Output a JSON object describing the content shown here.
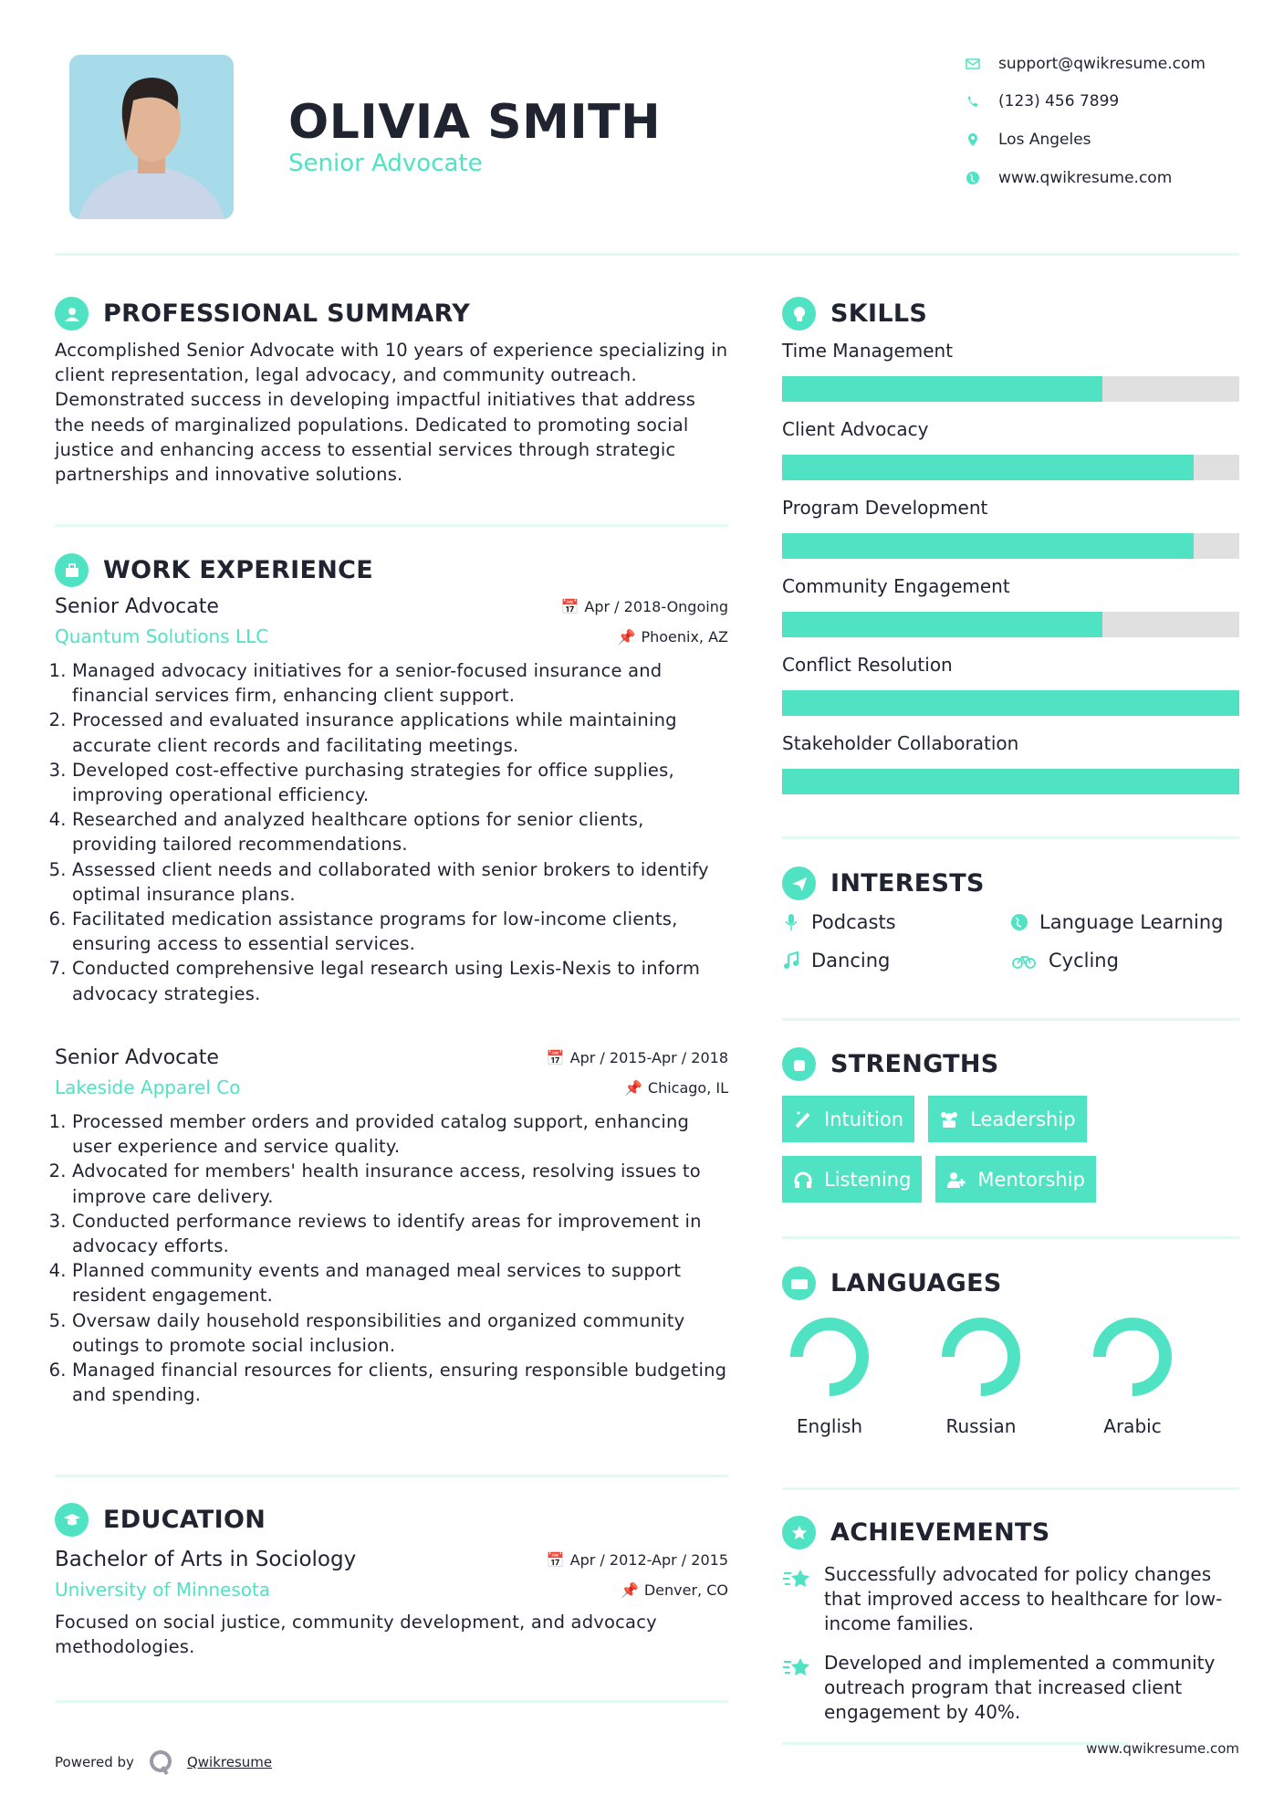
{
  "header": {
    "name": "OLIVIA SMITH",
    "title": "Senior Advocate",
    "contacts": [
      {
        "icon": "envelope-icon",
        "text": "support@qwikresume.com"
      },
      {
        "icon": "phone-icon",
        "text": "(123) 456 7899"
      },
      {
        "icon": "map-marker-icon",
        "text": "Los Angeles"
      },
      {
        "icon": "globe-icon",
        "text": "www.qwikresume.com"
      }
    ]
  },
  "summary": {
    "heading": "PROFESSIONAL SUMMARY",
    "text": "Accomplished Senior Advocate with 10 years of experience specializing in client representation, legal advocacy, and community outreach. Demonstrated success in developing impactful initiatives that address the needs of marginalized populations. Dedicated to promoting social justice and enhancing access to essential services through strategic partnerships and innovative solutions."
  },
  "work": {
    "heading": "WORK EXPERIENCE",
    "jobs": [
      {
        "title": "Senior Advocate",
        "dates": "Apr / 2018-Ongoing",
        "company": "Quantum Solutions LLC",
        "location": "Phoenix, AZ",
        "bullets": [
          "Managed advocacy initiatives for a senior-focused insurance and financial services firm, enhancing client support.",
          "Processed and evaluated insurance applications while maintaining accurate client records and facilitating meetings.",
          "Developed cost-effective purchasing strategies for office supplies, improving operational efficiency.",
          "Researched and analyzed healthcare options for senior clients, providing tailored recommendations.",
          "Assessed client needs and collaborated with senior brokers to identify optimal insurance plans.",
          "Facilitated medication assistance programs for low-income clients, ensuring access to essential services.",
          "Conducted comprehensive legal research using Lexis-Nexis to inform advocacy strategies."
        ]
      },
      {
        "title": "Senior Advocate",
        "dates": "Apr / 2015-Apr / 2018",
        "company": "Lakeside Apparel Co",
        "location": "Chicago, IL",
        "bullets": [
          "Processed member orders and provided catalog support, enhancing user experience and service quality.",
          "Advocated for members' health insurance access, resolving issues to improve care delivery.",
          "Conducted performance reviews to identify areas for improvement in advocacy efforts.",
          "Planned community events and managed meal services to support resident engagement.",
          "Oversaw daily household responsibilities and organized community outings to promote social inclusion.",
          "Managed financial resources for clients, ensuring responsible budgeting and spending."
        ]
      }
    ]
  },
  "education": {
    "heading": "EDUCATION",
    "degree": "Bachelor of Arts in Sociology",
    "dates": "Apr / 2012-Apr / 2015",
    "school": "University of Minnesota",
    "location": "Denver, CO",
    "text": "Focused on social justice, community development, and advocacy methodologies."
  },
  "skills": {
    "heading": "SKILLS",
    "items": [
      {
        "name": "Time Management",
        "level": 70
      },
      {
        "name": "Client Advocacy",
        "level": 90
      },
      {
        "name": "Program Development",
        "level": 90
      },
      {
        "name": "Community Engagement",
        "level": 70
      },
      {
        "name": "Conflict Resolution",
        "level": 100
      },
      {
        "name": "Stakeholder Collaboration",
        "level": 100
      }
    ]
  },
  "interests": {
    "heading": "INTERESTS",
    "items": [
      {
        "icon": "microphone-icon",
        "label": "Podcasts"
      },
      {
        "icon": "globe-icon",
        "label": "Language Learning"
      },
      {
        "icon": "music-icon",
        "label": "Dancing"
      },
      {
        "icon": "bicycle-icon",
        "label": "Cycling"
      }
    ]
  },
  "strengths": {
    "heading": "STRENGTHS",
    "items": [
      {
        "icon": "magic-wand-icon",
        "label": "Intuition"
      },
      {
        "icon": "users-icon",
        "label": "Leadership"
      },
      {
        "icon": "headphones-icon",
        "label": "Listening"
      },
      {
        "icon": "user-plus-icon",
        "label": "Mentorship"
      }
    ]
  },
  "languages": {
    "heading": "LANGUAGES",
    "items": [
      {
        "name": "English",
        "level": 75
      },
      {
        "name": "Russian",
        "level": 75
      },
      {
        "name": "Arabic",
        "level": 75
      }
    ]
  },
  "achievements": {
    "heading": "ACHIEVEMENTS",
    "items": [
      "Successfully advocated for policy changes that improved access to healthcare for low-income families.",
      "Developed and implemented a community outreach program that increased client engagement by 40%."
    ]
  },
  "footer": {
    "powered_by": "Powered by",
    "brand": "Qwikresume",
    "website": "www.qwikresume.com"
  },
  "colors": {
    "accent": "#4fe3c4",
    "text": "#1f2430",
    "divider": "#e3faf4",
    "bar_bg": "#e0e0e0"
  }
}
